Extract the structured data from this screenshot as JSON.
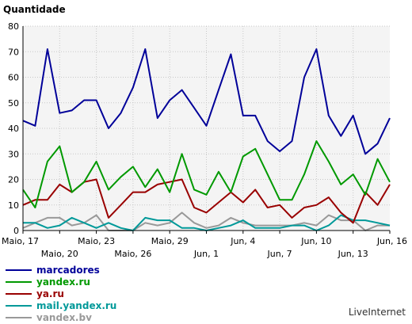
{
  "chart_data": {
    "type": "line",
    "title": "",
    "ylabel": "Quantidade",
    "xlabel": "",
    "ylim": [
      0,
      80
    ],
    "y_ticks": [
      0,
      10,
      20,
      30,
      40,
      50,
      60,
      70,
      80
    ],
    "grid": true,
    "legend_position": "bottom-left",
    "watermark": "LiveInternet",
    "x_tick_labels": [
      {
        "index": 0,
        "label": "Maio, 17",
        "row": 1
      },
      {
        "index": 3,
        "label": "Maio, 20",
        "row": 2
      },
      {
        "index": 6,
        "label": "Maio, 23",
        "row": 1
      },
      {
        "index": 9,
        "label": "Maio, 26",
        "row": 2
      },
      {
        "index": 12,
        "label": "Maio, 29",
        "row": 1
      },
      {
        "index": 15,
        "label": "Jun, 1",
        "row": 2
      },
      {
        "index": 18,
        "label": "Jun, 4",
        "row": 1
      },
      {
        "index": 21,
        "label": "Jun, 7",
        "row": 2
      },
      {
        "index": 24,
        "label": "Jun, 10",
        "row": 1
      },
      {
        "index": 27,
        "label": "Jun, 13",
        "row": 2
      },
      {
        "index": 30,
        "label": "Jun, 16",
        "row": 1
      }
    ],
    "series": [
      {
        "name": "marcadores",
        "color": "#000099",
        "values": [
          43,
          41,
          71,
          46,
          47,
          51,
          51,
          40,
          46,
          56,
          71,
          44,
          51,
          55,
          48,
          41,
          55,
          69,
          45,
          45,
          35,
          31,
          35,
          60,
          71,
          45,
          37,
          45,
          30,
          34,
          44
        ]
      },
      {
        "name": "yandex.ru",
        "color": "#009900",
        "values": [
          16,
          9,
          27,
          33,
          15,
          19,
          27,
          16,
          21,
          25,
          17,
          24,
          15,
          30,
          16,
          14,
          23,
          15,
          29,
          32,
          22,
          12,
          12,
          22,
          35,
          27,
          18,
          22,
          14,
          28,
          19
        ]
      },
      {
        "name": "ya.ru",
        "color": "#990000",
        "values": [
          10,
          12,
          12,
          18,
          15,
          19,
          20,
          5,
          10,
          15,
          15,
          18,
          19,
          20,
          9,
          7,
          11,
          15,
          11,
          16,
          9,
          10,
          5,
          9,
          10,
          13,
          7,
          3,
          15,
          10,
          18
        ]
      },
      {
        "name": "mail.yandex.ru",
        "color": "#009999",
        "values": [
          3,
          3,
          1,
          2,
          5,
          3,
          1,
          3,
          1,
          0,
          5,
          4,
          4,
          1,
          1,
          0,
          1,
          2,
          4,
          1,
          1,
          1,
          2,
          2,
          0,
          2,
          6,
          4,
          4,
          3,
          2
        ]
      },
      {
        "name": "yandex.by",
        "color": "#999999",
        "values": [
          1,
          3,
          5,
          5,
          2,
          3,
          6,
          0,
          0,
          0,
          3,
          2,
          3,
          7,
          3,
          1,
          2,
          5,
          3,
          2,
          2,
          2,
          2,
          3,
          2,
          6,
          4,
          4,
          0,
          2,
          2
        ]
      }
    ]
  }
}
